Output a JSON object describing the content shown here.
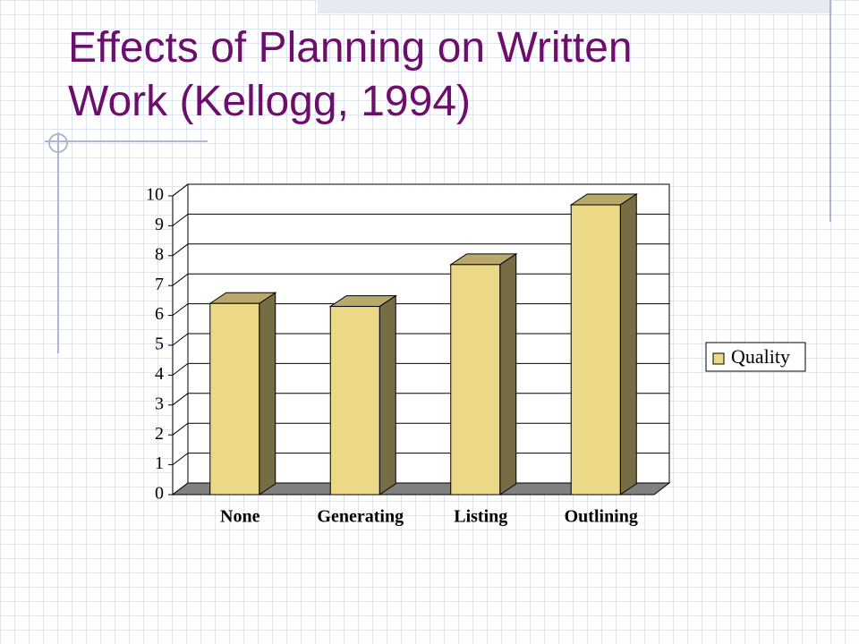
{
  "chart_data": {
    "type": "bar",
    "title": "Effects of Planning on Written Work (Kellogg, 1994)",
    "categories": [
      "None",
      "Generating",
      "Listing",
      "Outlining"
    ],
    "series": [
      {
        "name": "Quality",
        "color": "#ecd988",
        "values": [
          6.4,
          6.3,
          7.7,
          9.7
        ]
      }
    ],
    "ylim": [
      0,
      10
    ],
    "yticks": [
      0,
      1,
      2,
      3,
      4,
      5,
      6,
      7,
      8,
      9,
      10
    ],
    "grid": true,
    "legend": "right"
  }
}
